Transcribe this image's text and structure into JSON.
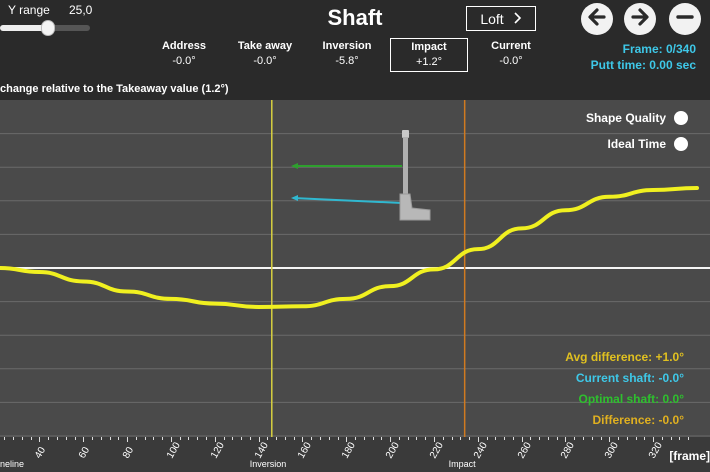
{
  "header": {
    "y_range_label": "Y range",
    "y_range_value": "25,0",
    "y_range_fraction": 0.53,
    "title": "Shaft",
    "loft_label": "Loft",
    "loft_icon": "chevron-right-icon",
    "back_icon": "arrow-left-icon",
    "forward_icon": "arrow-right-icon",
    "minus_icon": "minus-icon"
  },
  "metrics": [
    {
      "label": "Address",
      "value": "-0.0°"
    },
    {
      "label": "Take away",
      "value": "-0.0°"
    },
    {
      "label": "Inversion",
      "value": "-5.8°"
    },
    {
      "label": "Impact",
      "value": "+1.2°"
    },
    {
      "label": "Current",
      "value": "-0.0°"
    }
  ],
  "frame_info": {
    "frame": "Frame: 0/340",
    "putt_time": "Putt time: 0.00 sec"
  },
  "subtitle": "change relative to the Takeaway value (1.2°)",
  "legend": {
    "shape_quality": "Shape Quality",
    "ideal_time": "Ideal Time"
  },
  "stats": {
    "avg_difference": "Avg difference: +1.0°",
    "current_shaft": "Current shaft: -0.0°",
    "optimal_shaft": "Optimal shaft: 0.0°",
    "difference": "Difference: -0.0°"
  },
  "colors": {
    "curve": "#f0f020",
    "inversion_line": "#d8d040",
    "impact_line": "#d07a20",
    "green_arrow": "#2ea02e",
    "cyan_arrow": "#30b8d0",
    "avg_text": "#e0c020",
    "current_text": "#3ec8e8",
    "optimal_text": "#2ec02e",
    "difference_text": "#e0b020"
  },
  "chart_data": {
    "type": "line",
    "x_ticks": [
      "40",
      "60",
      "80",
      "100",
      "120",
      "140",
      "160",
      "180",
      "200",
      "220",
      "240",
      "260",
      "280",
      "300",
      "320"
    ],
    "xlabel": "[frame]",
    "xlim": [
      22,
      340
    ],
    "ylim": [
      -25,
      25
    ],
    "markers": [
      {
        "label": "Inversion",
        "x": 146
      },
      {
        "label": "Impact",
        "x": 234
      }
    ],
    "series": [
      {
        "x": [
          22,
          40,
          60,
          80,
          100,
          120,
          140,
          160,
          180,
          200,
          220,
          240,
          260,
          280,
          300,
          320,
          340
        ],
        "y": [
          0.0,
          -0.6,
          -2.0,
          -3.5,
          -4.6,
          -5.3,
          -5.8,
          -5.7,
          -4.6,
          -2.7,
          -0.2,
          2.8,
          5.9,
          8.6,
          10.6,
          11.6,
          11.9
        ]
      }
    ],
    "hlines": [
      0
    ]
  },
  "bottom_labels": {
    "left_cut": "neline"
  }
}
